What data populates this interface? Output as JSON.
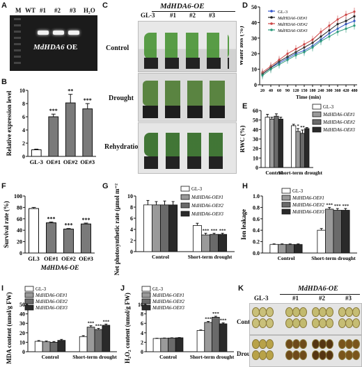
{
  "labels": {
    "a": "A",
    "b": "B",
    "c": "C",
    "d": "D",
    "e": "E",
    "f": "F",
    "g": "G",
    "h": "H",
    "i": "I",
    "j": "J",
    "k": "K"
  },
  "gel": {
    "lanes": [
      "M",
      "WT",
      "#1",
      "#2",
      "#3",
      "H₂O"
    ],
    "gene": "MdHDA6",
    "suffix": " OE"
  },
  "photos": {
    "header_group": "MdHDA6-OE",
    "columns": [
      "GL-3",
      "#1",
      "#2",
      "#3"
    ],
    "rows": [
      "Control",
      "Drought",
      "Rehydration"
    ]
  },
  "discs": {
    "header_group": "MdHDA6-OE",
    "columns": [
      "GL-3",
      "#1",
      "#2",
      "#3"
    ],
    "rows": [
      "Control",
      "Drought"
    ]
  },
  "legend_lines": [
    "GL-3",
    "MdHDA6-OE#1",
    "MdHDA6-OE#2",
    "MdHDA6-OE#3"
  ],
  "colors": {
    "gl3": "#ffffff",
    "oe1": "#9a9a9a",
    "oe2": "#6a6a6a",
    "oe3": "#2a2a2a",
    "line_gl3": "#3355cc",
    "line_oe1": "#222222",
    "line_oe2": "#cc4444",
    "line_oe3": "#2a9a7a"
  },
  "chart_data": [
    {
      "id": "B",
      "type": "bar",
      "ylabel": "Relative expression level",
      "categories": [
        "GL-3",
        "OE#1",
        "OE#2",
        "OE#3"
      ],
      "values": [
        1.0,
        6.0,
        8.1,
        7.2
      ],
      "errors": [
        0.1,
        0.4,
        1.3,
        0.8
      ],
      "significance": [
        "",
        "***",
        "**",
        "***"
      ],
      "ylim": [
        0,
        10
      ],
      "yticks": [
        0,
        2,
        4,
        6,
        8,
        10
      ]
    },
    {
      "id": "D",
      "type": "line",
      "ylabel": "Water loss (%)",
      "xlabel": "Time (min)",
      "x": [
        20,
        40,
        60,
        90,
        120,
        150,
        180,
        240,
        300,
        360,
        420,
        480
      ],
      "xticks": [
        20,
        40,
        60,
        90,
        120,
        150,
        180,
        240,
        300,
        360,
        420,
        480
      ],
      "ylim": [
        0,
        50
      ],
      "yticks": [
        0,
        10,
        20,
        30,
        40,
        50
      ],
      "series": [
        {
          "name": "GL-3",
          "values": [
            7,
            11,
            14,
            17,
            20,
            22,
            25,
            29,
            33,
            36,
            39,
            41
          ]
        },
        {
          "name": "MdHDA6-OE#1",
          "values": [
            7,
            11,
            15,
            18,
            21,
            24,
            27,
            31,
            35,
            39,
            41,
            44
          ]
        },
        {
          "name": "MdHDA6-OE#2",
          "values": [
            8,
            12,
            16,
            20,
            23,
            26,
            29,
            34,
            38,
            42,
            45,
            47
          ]
        },
        {
          "name": "MdHDA6-OE#3",
          "values": [
            6,
            10,
            13,
            16,
            19,
            21,
            24,
            28,
            31,
            34,
            36,
            38
          ]
        }
      ]
    },
    {
      "id": "E",
      "type": "bar",
      "ylabel": "RWC (%)",
      "categories": [
        "Control",
        "Short-term drought"
      ],
      "series": [
        {
          "name": "GL-3",
          "values": [
            53,
            44
          ],
          "errors": [
            3,
            1.5
          ]
        },
        {
          "name": "MdHDA6-OE#1",
          "values": [
            51,
            38
          ],
          "errors": [
            2,
            3
          ]
        },
        {
          "name": "MdHDA6-OE#2",
          "values": [
            54,
            36
          ],
          "errors": [
            2.5,
            3.5
          ]
        },
        {
          "name": "MdHDA6-OE#3",
          "values": [
            51,
            41
          ],
          "errors": [
            2,
            1
          ]
        }
      ],
      "significance": [
        [
          "",
          "",
          "",
          ""
        ],
        [
          "",
          "*",
          "**",
          ""
        ]
      ],
      "ylim": [
        0,
        60
      ],
      "yticks": [
        0,
        10,
        20,
        30,
        40,
        50,
        60
      ]
    },
    {
      "id": "F",
      "type": "bar",
      "ylabel": "Survival rate (%)",
      "xlabel": "MdHDA6-OE",
      "categories": [
        "GL3",
        "OE#1",
        "OE#2",
        "OE#3"
      ],
      "values": [
        78,
        53,
        42,
        51
      ],
      "errors": [
        2,
        1.5,
        1,
        1.5
      ],
      "significance": [
        "",
        "***",
        "***",
        "***"
      ],
      "ylim": [
        0,
        100
      ],
      "yticks": [
        0,
        20,
        40,
        60,
        80,
        100
      ]
    },
    {
      "id": "G",
      "type": "bar",
      "ylabel": "Net photosynthetic rate (μmol m⁻² s⁻¹)",
      "categories": [
        "Control",
        "Short-term drought"
      ],
      "series": [
        {
          "name": "GL-3",
          "values": [
            8.4,
            4.7
          ],
          "errors": [
            0.8,
            0.4
          ]
        },
        {
          "name": "MdHDA6-OE#1",
          "values": [
            8.4,
            3.0
          ],
          "errors": [
            0.6,
            0.3
          ]
        },
        {
          "name": "MdHDA6-OE#2",
          "values": [
            8.4,
            3.1
          ],
          "errors": [
            0.7,
            0.2
          ]
        },
        {
          "name": "MdHDA6-OE#3",
          "values": [
            8.4,
            3.1
          ],
          "errors": [
            0.6,
            0.2
          ]
        }
      ],
      "significance": [
        [
          "",
          "",
          "",
          ""
        ],
        [
          "",
          "***",
          "***",
          "***"
        ]
      ],
      "ylim": [
        0,
        10
      ],
      "yticks": [
        0,
        2,
        4,
        6,
        8,
        10
      ]
    },
    {
      "id": "H",
      "type": "bar",
      "ylabel": "Ion leakage",
      "categories": [
        "Control",
        "Short-term drought"
      ],
      "series": [
        {
          "name": "GL-3",
          "values": [
            0.15,
            0.4
          ],
          "errors": [
            0.01,
            0.03
          ]
        },
        {
          "name": "MdHDA6-OE#1",
          "values": [
            0.15,
            0.77
          ],
          "errors": [
            0.01,
            0.03
          ]
        },
        {
          "name": "MdHDA6-OE#2",
          "values": [
            0.15,
            0.75
          ],
          "errors": [
            0.01,
            0.03
          ]
        },
        {
          "name": "MdHDA6-OE#3",
          "values": [
            0.15,
            0.75
          ],
          "errors": [
            0.01,
            0.03
          ]
        }
      ],
      "significance": [
        [
          "",
          "",
          "",
          ""
        ],
        [
          "",
          "***",
          "***",
          "***"
        ]
      ],
      "ylim": [
        0,
        1.0
      ],
      "yticks": [
        0,
        0.2,
        0.4,
        0.6,
        0.8,
        1.0
      ]
    },
    {
      "id": "I",
      "type": "bar",
      "ylabel": "MDA content (umol/g FW)",
      "categories": [
        "Control",
        "Short-term drought"
      ],
      "series": [
        {
          "name": "GL-3",
          "values": [
            11,
            16
          ],
          "errors": [
            0.8,
            1
          ]
        },
        {
          "name": "MdHDA6-OE#1",
          "values": [
            10.5,
            26
          ],
          "errors": [
            0.8,
            1.5
          ]
        },
        {
          "name": "MdHDA6-OE#2",
          "values": [
            10,
            23.5
          ],
          "errors": [
            0.8,
            1.2
          ]
        },
        {
          "name": "MdHDA6-OE#3",
          "values": [
            12,
            28
          ],
          "errors": [
            1,
            1.2
          ]
        }
      ],
      "significance": [
        [
          "",
          "",
          "",
          ""
        ],
        [
          "",
          "***",
          "***",
          "***"
        ]
      ],
      "ylim": [
        0,
        50
      ],
      "yticks": [
        0,
        10,
        20,
        30,
        40,
        50
      ]
    },
    {
      "id": "J",
      "type": "bar",
      "ylabel": "H₂O₂ content (umol/g FW)",
      "categories": [
        "Control",
        "Short-term drought"
      ],
      "series": [
        {
          "name": "GL-3",
          "values": [
            2.8,
            4.5
          ],
          "errors": [
            0.05,
            0.1
          ]
        },
        {
          "name": "MdHDA6-OE#1",
          "values": [
            2.85,
            6.2
          ],
          "errors": [
            0.05,
            0.2
          ]
        },
        {
          "name": "MdHDA6-OE#2",
          "values": [
            2.9,
            7.3
          ],
          "errors": [
            0.05,
            0.2
          ]
        },
        {
          "name": "MdHDA6-OE#3",
          "values": [
            2.95,
            5.9
          ],
          "errors": [
            0.05,
            0.2
          ]
        }
      ],
      "significance": [
        [
          "",
          "",
          "",
          ""
        ],
        [
          "",
          "***",
          "***",
          "***"
        ]
      ],
      "ylim": [
        0,
        10
      ],
      "yticks": [
        0,
        2,
        4,
        6,
        8,
        10
      ]
    }
  ]
}
